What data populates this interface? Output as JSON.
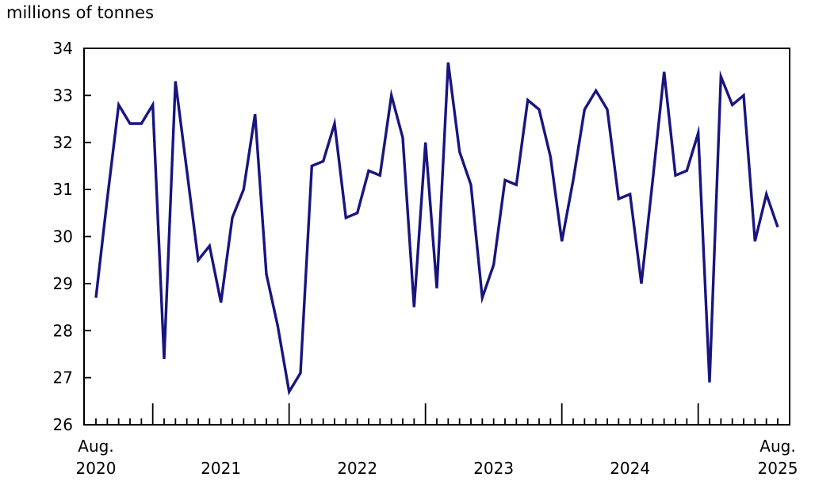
{
  "chart_data": {
    "type": "line",
    "title": "millions of tonnes",
    "ylim": [
      26,
      34
    ],
    "y_ticks": [
      26,
      27,
      28,
      29,
      30,
      31,
      32,
      33,
      34
    ],
    "x_axis": {
      "first_tick_label": [
        "Aug.",
        "2020"
      ],
      "last_tick_label": [
        "Aug.",
        "2025"
      ],
      "year_labels": [
        "2021",
        "2022",
        "2023",
        "2024"
      ],
      "tick_interval": "monthly",
      "major_tick_month": "01"
    },
    "grid": false,
    "legend": false,
    "line_color": "#181580",
    "series": [
      {
        "months": [
          "2020-08",
          "2020-09",
          "2020-10",
          "2020-11",
          "2020-12",
          "2021-01",
          "2021-02",
          "2021-03",
          "2021-04",
          "2021-05",
          "2021-06",
          "2021-07",
          "2021-08",
          "2021-09",
          "2021-10",
          "2021-11",
          "2021-12",
          "2022-01",
          "2022-02",
          "2022-03",
          "2022-04",
          "2022-05",
          "2022-06",
          "2022-07",
          "2022-08",
          "2022-09",
          "2022-10",
          "2022-11",
          "2022-12",
          "2023-01",
          "2023-02",
          "2023-03",
          "2023-04",
          "2023-05",
          "2023-06",
          "2023-07",
          "2023-08",
          "2023-09",
          "2023-10",
          "2023-11",
          "2023-12",
          "2024-01",
          "2024-02",
          "2024-03",
          "2024-04",
          "2024-05",
          "2024-06",
          "2024-07",
          "2024-08",
          "2024-09",
          "2024-10",
          "2024-11",
          "2024-12",
          "2025-01",
          "2025-02",
          "2025-03",
          "2025-04",
          "2025-05",
          "2025-06",
          "2025-07",
          "2025-08"
        ],
        "values": [
          28.7,
          30.8,
          32.8,
          32.4,
          32.4,
          32.8,
          27.4,
          33.3,
          31.4,
          29.5,
          29.8,
          28.6,
          30.4,
          31.0,
          32.6,
          29.2,
          28.1,
          26.7,
          27.1,
          31.5,
          31.6,
          32.4,
          30.4,
          30.5,
          31.4,
          31.3,
          33.0,
          32.1,
          28.5,
          32.0,
          28.9,
          33.7,
          31.8,
          31.1,
          28.7,
          29.4,
          31.2,
          31.1,
          32.9,
          32.7,
          31.7,
          29.9,
          31.2,
          32.7,
          33.1,
          32.7,
          30.8,
          30.9,
          29.0,
          31.2,
          33.5,
          31.3,
          31.4,
          32.2,
          26.9,
          33.4,
          32.8,
          33.0,
          29.9,
          30.9,
          30.2
        ]
      }
    ]
  }
}
